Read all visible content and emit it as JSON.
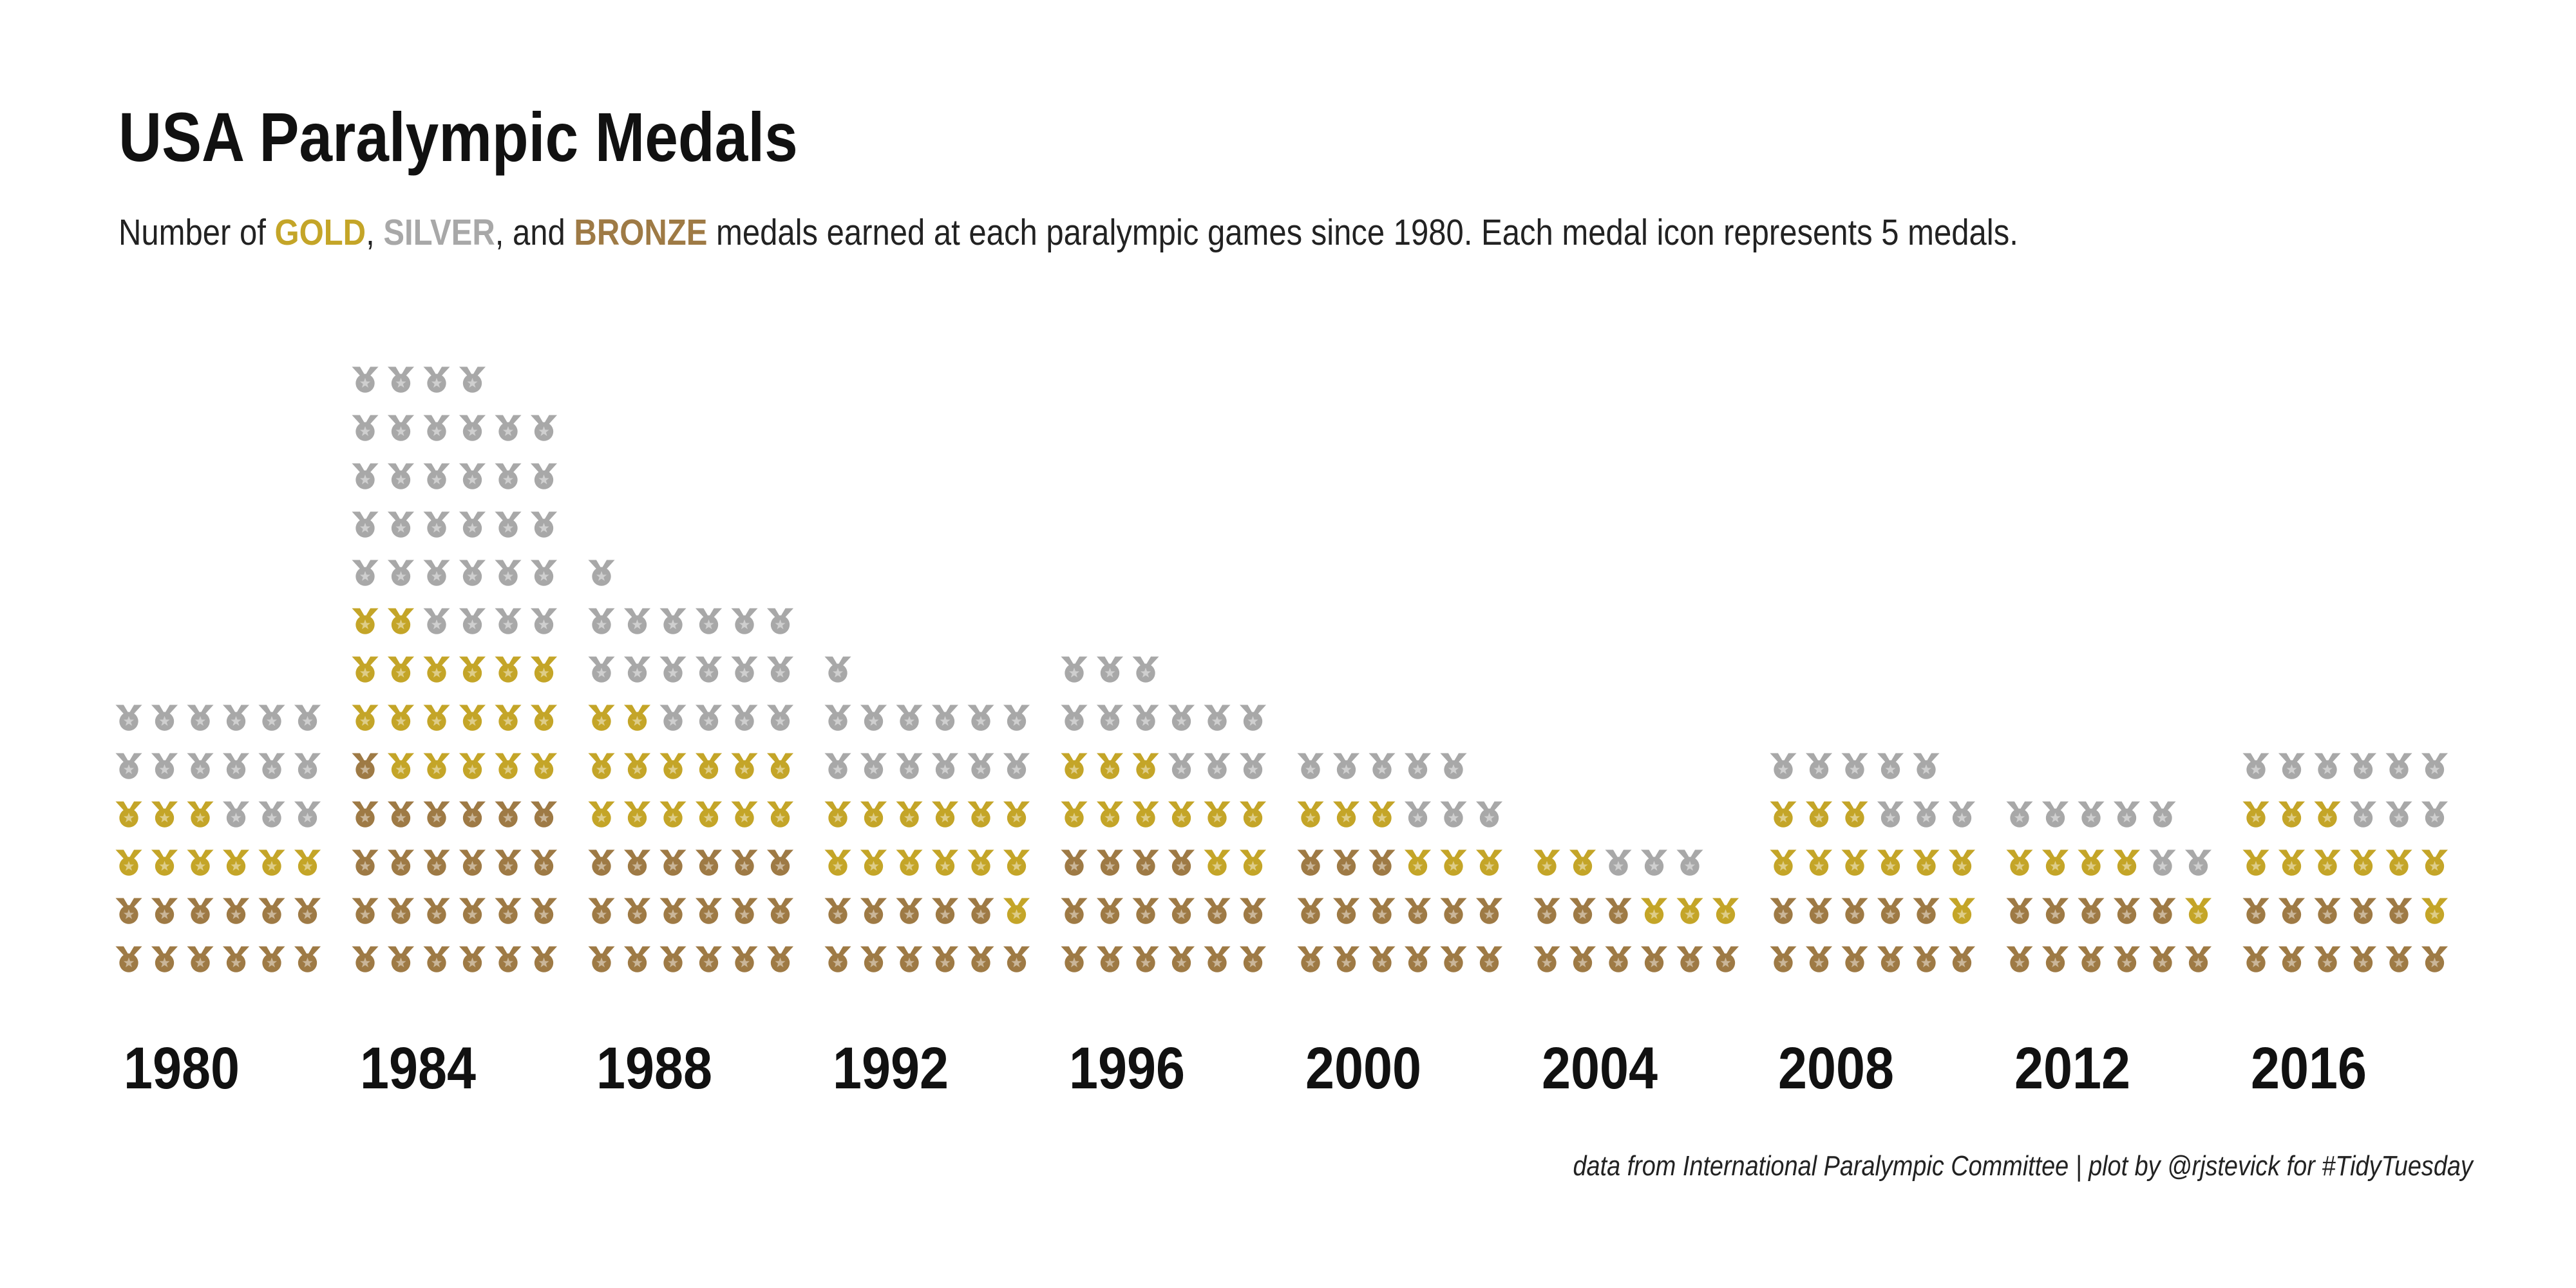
{
  "title": "USA Paralympic Medals",
  "subtitle": {
    "prefix": "Number of ",
    "gold": "GOLD",
    "sep1": ", ",
    "silver": "SILVER",
    "sep2": ", and ",
    "bronze": "BRONZE",
    "suffix": " medals earned at each paralympic games since 1980. Each medal icon represents 5 medals."
  },
  "caption": "data from International Paralympic Committee | plot by @rjstevick for #TidyTuesday",
  "colors": {
    "gold": "#C4A528",
    "silver": "#A8A8A8",
    "bronze": "#9E7A45",
    "text": "#111111"
  },
  "icon": "medal-icon",
  "chart_data": {
    "type": "waffle",
    "unit": "Each medal icon represents 5 medals",
    "icons_per_row": 6,
    "stack_order": [
      "bronze",
      "gold",
      "silver"
    ],
    "categories": [
      "1980",
      "1984",
      "1988",
      "1992",
      "1996",
      "2000",
      "2004",
      "2008",
      "2012",
      "2016"
    ],
    "series": [
      {
        "name": "GOLD",
        "key": "gold",
        "icons": [
          9,
          19,
          14,
          13,
          11,
          6,
          5,
          10,
          5,
          10
        ]
      },
      {
        "name": "SILVER",
        "key": "silver",
        "icons": [
          15,
          32,
          17,
          13,
          12,
          8,
          3,
          8,
          7,
          9
        ]
      },
      {
        "name": "BRONZE",
        "key": "bronze",
        "icons": [
          12,
          25,
          18,
          11,
          16,
          15,
          9,
          11,
          11,
          11
        ]
      }
    ]
  }
}
